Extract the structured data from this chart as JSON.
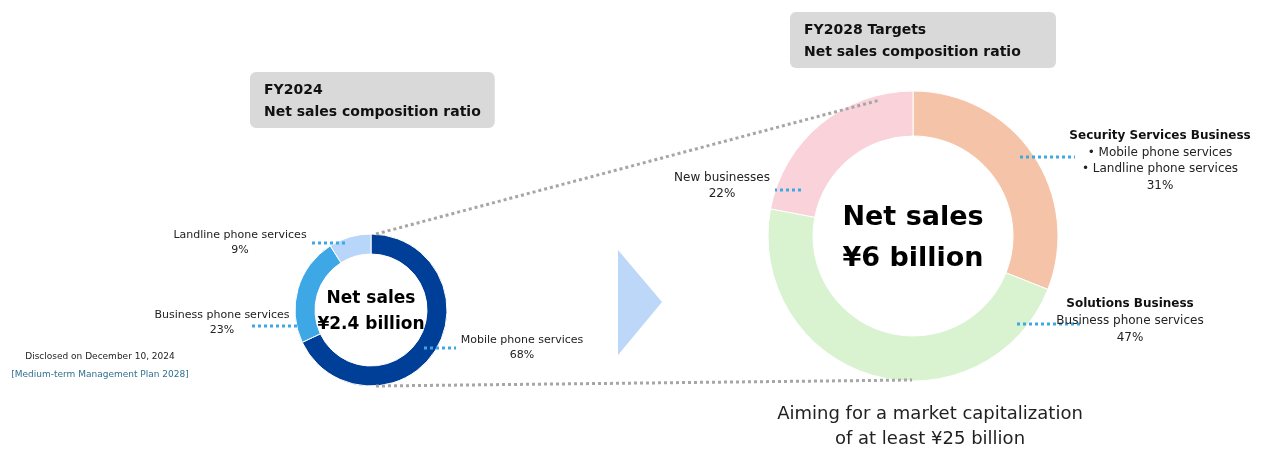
{
  "chart_data": [
    {
      "type": "donut",
      "title": "FY2024\nNet sales composition ratio",
      "categories": [
        "Mobile phone services",
        "Business phone services",
        "Landline phone services"
      ],
      "values": [
        68,
        23,
        9
      ],
      "colors": [
        "#003f98",
        "#3ea8e6",
        "#b7d6fa"
      ],
      "value_labels": [
        "68%",
        "23%",
        "9%"
      ],
      "annotations": [
        "Net sales\n¥2.4 billion",
        "Disclosed on December 10, 2024",
        "[Medium-term Management Plan 2028]"
      ]
    },
    {
      "type": "donut",
      "title": "FY2028 Targets\nNet sales composition ratio",
      "categories": [
        "Security Services Business",
        "Solutions Business",
        "New businesses"
      ],
      "values": [
        31,
        47,
        22
      ],
      "colors": [
        "#f5c4a8",
        "#d9f2d0",
        "#f9d2da"
      ],
      "value_labels": [
        "31%",
        "47%",
        "22%"
      ],
      "annotations": [
        "Net sales\n¥6 billion",
        {
          "text": "• Mobile phone services\n• Landline phone services",
          "x": "Security Services Business"
        },
        {
          "text": "Business phone services",
          "x": "Solutions Business"
        },
        "Aiming for a market capitalization\nof at least ¥25 billion"
      ]
    }
  ]
}
